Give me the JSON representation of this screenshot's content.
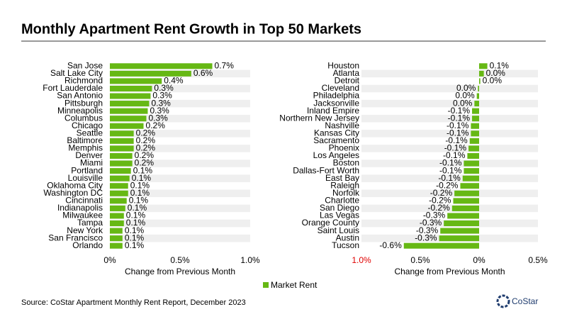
{
  "title": "Monthly Apartment Rent Growth in Top 50 Markets",
  "source": "Source: CoStar Apartment Monthly Rent Report, December 2023",
  "legend": {
    "label": "Market Rent",
    "color": "#66b814"
  },
  "logo": "CoStar",
  "chart_data": [
    {
      "type": "bar",
      "orientation": "horizontal",
      "color": "#66b814",
      "x_label": "Change from Previous Month",
      "categories": [
        "San Jose",
        "Salt Lake City",
        "Richmond",
        "Fort Lauderdale",
        "San Antonio",
        "Pittsburgh",
        "Minneapolis",
        "Columbus",
        "Chicago",
        "Seattle",
        "Baltimore",
        "Memphis",
        "Denver",
        "Miami",
        "Portland",
        "Louisville",
        "Oklahoma City",
        "Washington DC",
        "Cincinnati",
        "Indianapolis",
        "Milwaukee",
        "Tampa",
        "New York",
        "San Francisco",
        "Orlando"
      ],
      "values": [
        0.73,
        0.58,
        0.37,
        0.3,
        0.29,
        0.28,
        0.27,
        0.26,
        0.24,
        0.17,
        0.17,
        0.17,
        0.16,
        0.16,
        0.15,
        0.14,
        0.13,
        0.13,
        0.12,
        0.11,
        0.1,
        0.1,
        0.09,
        0.09,
        0.09
      ],
      "value_labels": [
        "0.7%",
        "0.6%",
        "0.4%",
        "0.3%",
        "0.3%",
        "0.3%",
        "0.3%",
        "0.3%",
        "0.2%",
        "0.2%",
        "0.2%",
        "0.2%",
        "0.2%",
        "0.2%",
        "0.1%",
        "0.1%",
        "0.1%",
        "0.1%",
        "0.1%",
        "0.1%",
        "0.1%",
        "0.1%",
        "0.1%",
        "0.1%",
        "0.1%"
      ],
      "xlim": [
        0,
        1.0
      ],
      "xticks": [
        {
          "value": 0,
          "label": "0%"
        },
        {
          "value": 0.5,
          "label": "0.5%"
        },
        {
          "value": 1.0,
          "label": "1.0%"
        }
      ]
    },
    {
      "type": "bar",
      "orientation": "horizontal",
      "color": "#66b814",
      "x_label": "Change from Previous Month",
      "categories": [
        "Houston",
        "Atlanta",
        "Detroit",
        "Cleveland",
        "Philadelphia",
        "Jacksonville",
        "Inland Empire",
        "Northern New Jersey",
        "Nashville",
        "Kansas City",
        "Sacramento",
        "Phoenix",
        "Los Angeles",
        "Boston",
        "Dallas-Fort Worth",
        "East Bay",
        "Raleigh",
        "Norfolk",
        "Charlotte",
        "San Diego",
        "Las Vegas",
        "Orange County",
        "Saint Louis",
        "Austin",
        "Tucson"
      ],
      "values": [
        0.07,
        0.04,
        0.01,
        -0.01,
        -0.02,
        -0.04,
        -0.06,
        -0.06,
        -0.07,
        -0.07,
        -0.08,
        -0.09,
        -0.1,
        -0.13,
        -0.13,
        -0.14,
        -0.16,
        -0.21,
        -0.22,
        -0.23,
        -0.27,
        -0.3,
        -0.33,
        -0.34,
        -0.64
      ],
      "value_labels": [
        "0.1%",
        "0.0%",
        "0.0%",
        "0.0%",
        "0.0%",
        "0.0%",
        "-0.1%",
        "-0.1%",
        "-0.1%",
        "-0.1%",
        "-0.1%",
        "-0.1%",
        "-0.1%",
        "-0.1%",
        "-0.1%",
        "-0.1%",
        "-0.2%",
        "-0.2%",
        "-0.2%",
        "-0.2%",
        "-0.3%",
        "-0.3%",
        "-0.3%",
        "-0.3%",
        "-0.6%"
      ],
      "xlim": [
        -1.0,
        0.5
      ],
      "xticks": [
        {
          "value": -1.0,
          "label": "1.0%",
          "color": "#e00000"
        },
        {
          "value": -0.5,
          "label": "0.5%"
        },
        {
          "value": 0,
          "label": "0%"
        },
        {
          "value": 0.5,
          "label": "0.5%"
        }
      ]
    }
  ]
}
